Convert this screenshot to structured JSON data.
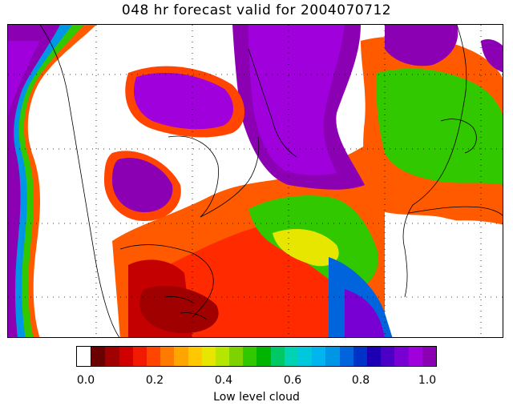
{
  "title": "048 hr forecast valid for 2004070712",
  "map": {
    "description": "Low level cloud fraction over North Atlantic and surrounding continents",
    "ocean_color": "#ffffff"
  },
  "colorbar": {
    "label": "Low level cloud",
    "ticks": [
      "0.0",
      "0.2",
      "0.4",
      "0.6",
      "0.8",
      "1.0"
    ],
    "colors": [
      "#ffffff",
      "#6b0000",
      "#a00000",
      "#d00000",
      "#f21a00",
      "#ff4500",
      "#ff7a00",
      "#ffa500",
      "#ffc800",
      "#e6e600",
      "#b4e600",
      "#7dd200",
      "#32c800",
      "#00b400",
      "#00c864",
      "#00d2b4",
      "#00c8dc",
      "#00b4f0",
      "#0096e6",
      "#0064dc",
      "#0032c8",
      "#1e00b4",
      "#4b00c8",
      "#7800d2",
      "#a000dc",
      "#8c00b4"
    ]
  }
}
